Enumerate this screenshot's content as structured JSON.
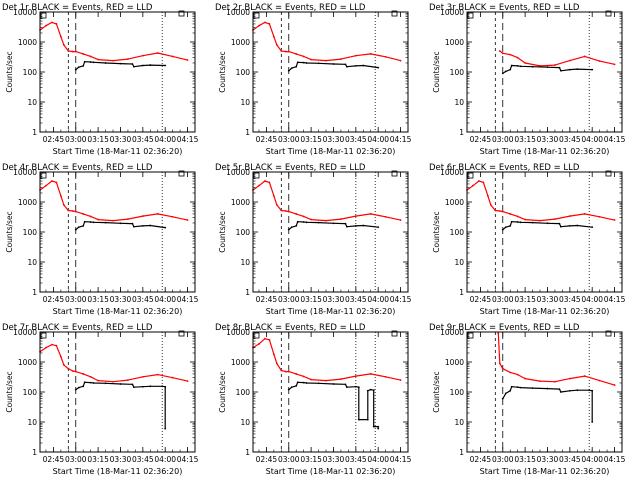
{
  "chart_data": [
    {
      "type": "line",
      "title": "Det 1r BLACK = Events, RED = LLD",
      "x_label": "Start Time (18-Mar-11 02:36:20)",
      "y_label": "Counts/sec",
      "x_ticks": [
        "02:45",
        "03:00",
        "03:15",
        "03:30",
        "03:45",
        "04:00",
        "04:15"
      ],
      "y_ticks": [
        "1",
        "10",
        "100",
        "1000",
        "10000"
      ],
      "y_scale": "log",
      "ylim": [
        1,
        10000
      ],
      "series": [
        {
          "color": "#ff0000",
          "x": [
            "02:36",
            "02:40",
            "02:44",
            "02:47",
            "02:50",
            "02:52",
            "02:55",
            "02:58",
            "03:00",
            "03:05",
            "03:10",
            "03:15",
            "03:25",
            "03:35",
            "03:45",
            "03:55",
            "04:05",
            "04:15"
          ],
          "y": [
            2500,
            3500,
            4500,
            4000,
            1500,
            800,
            500,
            480,
            480,
            400,
            330,
            260,
            240,
            270,
            350,
            430,
            330,
            250
          ]
        },
        {
          "color": "#000000",
          "x": [
            "03:00",
            "03:02",
            "03:05",
            "03:06",
            "03:10",
            "03:12",
            "03:20",
            "03:30",
            "03:38",
            "03:39",
            "03:45",
            "03:50",
            "04:00"
          ],
          "y": [
            120,
            145,
            160,
            220,
            215,
            210,
            200,
            190,
            185,
            150,
            165,
            170,
            165
          ]
        }
      ]
    },
    {
      "type": "line",
      "title": "Det 2r BLACK = Events, RED = LLD",
      "x_label": "Start Time (18-Mar-11 02:36:20)",
      "y_label": "Counts/sec",
      "x_ticks": [
        "02:45",
        "03:00",
        "03:15",
        "03:30",
        "03:45",
        "04:00",
        "04:15"
      ],
      "y_ticks": [
        "1",
        "10",
        "100",
        "1000",
        "10000"
      ],
      "y_scale": "log",
      "ylim": [
        1,
        10000
      ],
      "series": [
        {
          "color": "#ff0000",
          "x": [
            "02:36",
            "02:40",
            "02:44",
            "02:47",
            "02:50",
            "02:52",
            "02:55",
            "02:58",
            "03:00",
            "03:05",
            "03:10",
            "03:15",
            "03:25",
            "03:35",
            "03:45",
            "03:55",
            "04:05",
            "04:15"
          ],
          "y": [
            2500,
            3500,
            4500,
            4000,
            1500,
            800,
            500,
            480,
            480,
            400,
            330,
            260,
            240,
            270,
            350,
            400,
            320,
            240
          ]
        },
        {
          "color": "#000000",
          "x": [
            "03:00",
            "03:02",
            "03:05",
            "03:06",
            "03:10",
            "03:12",
            "03:20",
            "03:30",
            "03:38",
            "03:39",
            "03:45",
            "03:50",
            "04:00"
          ],
          "y": [
            110,
            135,
            150,
            210,
            205,
            200,
            195,
            185,
            180,
            150,
            160,
            165,
            140
          ]
        }
      ]
    },
    {
      "type": "line",
      "title": "Det 3r BLACK = Events, RED = LLD",
      "x_label": "Start Time (18-Mar-11 02:36:20)",
      "y_label": "Counts/sec",
      "x_ticks": [
        "02:45",
        "03:00",
        "03:15",
        "03:30",
        "03:45",
        "04:00",
        "04:15"
      ],
      "y_ticks": [
        "1",
        "10",
        "100",
        "1000",
        "10000"
      ],
      "y_scale": "log",
      "ylim": [
        1,
        10000
      ],
      "series": [
        {
          "color": "#ff0000",
          "x": [
            "02:58",
            "03:00",
            "03:05",
            "03:10",
            "03:15",
            "03:25",
            "03:35",
            "03:45",
            "03:55",
            "04:05",
            "04:15"
          ],
          "y": [
            500,
            420,
            380,
            300,
            200,
            160,
            170,
            240,
            330,
            230,
            180
          ]
        },
        {
          "color": "#000000",
          "x": [
            "03:00",
            "03:02",
            "03:05",
            "03:06",
            "03:10",
            "03:12",
            "03:20",
            "03:30",
            "03:38",
            "03:39",
            "03:45",
            "03:50",
            "04:00"
          ],
          "y": [
            90,
            105,
            120,
            165,
            160,
            155,
            150,
            145,
            140,
            110,
            120,
            125,
            120
          ]
        }
      ]
    },
    {
      "type": "line",
      "title": "Det 4r BLACK = Events, RED = LLD",
      "x_label": "Start Time (18-Mar-11 02:36:20)",
      "y_label": "Counts/sec",
      "x_ticks": [
        "02:45",
        "03:00",
        "03:15",
        "03:30",
        "03:45",
        "04:00",
        "04:15"
      ],
      "y_ticks": [
        "1",
        "10",
        "100",
        "1000",
        "10000"
      ],
      "y_scale": "log",
      "ylim": [
        1,
        10000
      ],
      "series": [
        {
          "color": "#ff0000",
          "x": [
            "02:36",
            "02:40",
            "02:44",
            "02:47",
            "02:50",
            "02:52",
            "02:55",
            "02:58",
            "03:00",
            "03:05",
            "03:10",
            "03:15",
            "03:25",
            "03:35",
            "03:45",
            "03:55",
            "04:05",
            "04:15"
          ],
          "y": [
            2500,
            3500,
            5000,
            4500,
            1600,
            800,
            520,
            500,
            480,
            400,
            330,
            260,
            240,
            270,
            340,
            400,
            320,
            250
          ]
        },
        {
          "color": "#000000",
          "x": [
            "03:00",
            "03:02",
            "03:05",
            "03:06",
            "03:10",
            "03:12",
            "03:20",
            "03:30",
            "03:38",
            "03:39",
            "03:45",
            "03:50",
            "04:00"
          ],
          "y": [
            120,
            145,
            160,
            220,
            215,
            210,
            205,
            195,
            190,
            150,
            160,
            165,
            140
          ]
        }
      ]
    },
    {
      "type": "line",
      "title": "Det 5r BLACK = Events, RED = LLD",
      "x_label": "Start Time (18-Mar-11 02:36:20)",
      "y_label": "Counts/sec",
      "x_ticks": [
        "02:45",
        "03:00",
        "03:15",
        "03:30",
        "03:45",
        "04:00",
        "04:15"
      ],
      "y_ticks": [
        "1",
        "10",
        "100",
        "1000",
        "10000"
      ],
      "y_scale": "log",
      "ylim": [
        1,
        10000
      ],
      "series": [
        {
          "color": "#ff0000",
          "x": [
            "02:36",
            "02:40",
            "02:44",
            "02:47",
            "02:50",
            "02:52",
            "02:55",
            "02:58",
            "03:00",
            "03:05",
            "03:10",
            "03:15",
            "03:25",
            "03:35",
            "03:45",
            "03:55",
            "04:05",
            "04:15"
          ],
          "y": [
            2500,
            3500,
            5000,
            4500,
            1600,
            800,
            520,
            500,
            480,
            400,
            330,
            260,
            240,
            270,
            340,
            400,
            320,
            250
          ]
        },
        {
          "color": "#000000",
          "x": [
            "03:00",
            "03:02",
            "03:05",
            "03:06",
            "03:10",
            "03:12",
            "03:20",
            "03:30",
            "03:38",
            "03:39",
            "03:45",
            "03:50",
            "04:00"
          ],
          "y": [
            120,
            145,
            160,
            220,
            215,
            210,
            205,
            195,
            190,
            150,
            160,
            165,
            145
          ]
        }
      ]
    },
    {
      "type": "line",
      "title": "Det 6r BLACK = Events, RED = LLD",
      "x_label": "Start Time (18-Mar-11 02:36:20)",
      "y_label": "Counts/sec",
      "x_ticks": [
        "02:45",
        "03:00",
        "03:15",
        "03:30",
        "03:45",
        "04:00",
        "04:15"
      ],
      "y_ticks": [
        "1",
        "10",
        "100",
        "1000",
        "10000"
      ],
      "y_scale": "log",
      "ylim": [
        1,
        10000
      ],
      "series": [
        {
          "color": "#ff0000",
          "x": [
            "02:36",
            "02:40",
            "02:44",
            "02:47",
            "02:50",
            "02:52",
            "02:55",
            "02:58",
            "03:00",
            "03:05",
            "03:10",
            "03:15",
            "03:25",
            "03:35",
            "03:45",
            "03:55",
            "04:05",
            "04:15"
          ],
          "y": [
            2500,
            3500,
            5000,
            4500,
            1600,
            800,
            520,
            500,
            480,
            400,
            330,
            260,
            240,
            270,
            340,
            400,
            320,
            250
          ]
        },
        {
          "color": "#000000",
          "x": [
            "03:00",
            "03:02",
            "03:05",
            "03:06",
            "03:10",
            "03:12",
            "03:20",
            "03:30",
            "03:38",
            "03:39",
            "03:45",
            "03:50",
            "04:00"
          ],
          "y": [
            120,
            145,
            160,
            220,
            215,
            210,
            205,
            195,
            190,
            150,
            160,
            165,
            145
          ]
        }
      ]
    },
    {
      "type": "line",
      "title": "Det 7r BLACK = Events, RED = LLD",
      "x_label": "Start Time (18-Mar-11 02:36:20)",
      "y_label": "Counts/sec",
      "x_ticks": [
        "02:45",
        "03:00",
        "03:15",
        "03:30",
        "03:45",
        "04:00",
        "04:15"
      ],
      "y_ticks": [
        "1",
        "10",
        "100",
        "1000",
        "10000"
      ],
      "y_scale": "log",
      "ylim": [
        1,
        10000
      ],
      "series": [
        {
          "color": "#ff0000",
          "x": [
            "02:36",
            "02:40",
            "02:44",
            "02:47",
            "02:50",
            "02:52",
            "02:55",
            "02:58",
            "03:00",
            "03:05",
            "03:10",
            "03:15",
            "03:25",
            "03:35",
            "03:45",
            "03:55",
            "04:05",
            "04:15"
          ],
          "y": [
            2200,
            3000,
            3800,
            3500,
            1500,
            800,
            600,
            500,
            480,
            400,
            320,
            240,
            220,
            250,
            320,
            380,
            300,
            230
          ]
        },
        {
          "color": "#000000",
          "x": [
            "03:00",
            "03:02",
            "03:05",
            "03:06",
            "03:10",
            "03:12",
            "03:20",
            "03:30",
            "03:38",
            "03:39",
            "03:45",
            "03:50",
            "03:58",
            "04:00",
            "04:00"
          ],
          "y": [
            120,
            140,
            155,
            210,
            205,
            200,
            195,
            185,
            180,
            145,
            150,
            155,
            155,
            150,
            6
          ]
        }
      ]
    },
    {
      "type": "line",
      "title": "Det 8r BLACK = Events, RED = LLD",
      "x_label": "Start Time (18-Mar-11 02:36:20)",
      "y_label": "Counts/sec",
      "x_ticks": [
        "02:45",
        "03:00",
        "03:15",
        "03:30",
        "03:45",
        "04:00",
        "04:15"
      ],
      "y_ticks": [
        "1",
        "10",
        "100",
        "1000",
        "10000"
      ],
      "y_scale": "log",
      "ylim": [
        1,
        10000
      ],
      "series": [
        {
          "color": "#ff0000",
          "x": [
            "02:36",
            "02:40",
            "02:44",
            "02:47",
            "02:50",
            "02:52",
            "02:55",
            "02:58",
            "03:00",
            "03:05",
            "03:10",
            "03:15",
            "03:25",
            "03:35",
            "03:45",
            "03:55",
            "04:05",
            "04:15"
          ],
          "y": [
            3000,
            4000,
            6000,
            5500,
            1800,
            900,
            520,
            480,
            480,
            400,
            330,
            260,
            240,
            270,
            340,
            400,
            320,
            250
          ]
        },
        {
          "color": "#000000",
          "x": [
            "03:00",
            "03:02",
            "03:05",
            "03:06",
            "03:10",
            "03:12",
            "03:20",
            "03:30",
            "03:38",
            "03:39",
            "03:45",
            "03:47",
            "03:47",
            "03:53",
            "03:53",
            "03:55",
            "03:57",
            "03:57",
            "04:00",
            "04:00"
          ],
          "y": [
            120,
            145,
            160,
            210,
            205,
            200,
            195,
            185,
            180,
            145,
            150,
            145,
            12,
            12,
            110,
            120,
            115,
            7,
            7,
            6
          ]
        }
      ]
    },
    {
      "type": "line",
      "title": "Det 9r BLACK = Events, RED = LLD",
      "x_label": "Start Time (18-Mar-11 02:36:20)",
      "y_label": "Counts/sec",
      "x_ticks": [
        "02:45",
        "03:00",
        "03:15",
        "03:30",
        "03:45",
        "04:00",
        "04:15"
      ],
      "y_ticks": [
        "1",
        "10",
        "100",
        "1000",
        "10000"
      ],
      "y_scale": "log",
      "ylim": [
        1,
        10000
      ],
      "series": [
        {
          "color": "#ff0000",
          "x": [
            "02:57",
            "02:58",
            "03:00",
            "03:05",
            "03:10",
            "03:15",
            "03:25",
            "03:35",
            "03:45",
            "03:55",
            "04:05",
            "04:15"
          ],
          "y": [
            9000,
            900,
            600,
            450,
            380,
            280,
            230,
            220,
            280,
            340,
            240,
            170
          ]
        },
        {
          "color": "#000000",
          "x": [
            "03:00",
            "03:02",
            "03:05",
            "03:06",
            "03:10",
            "03:12",
            "03:20",
            "03:30",
            "03:38",
            "03:39",
            "03:45",
            "03:50",
            "03:58",
            "04:00",
            "04:00"
          ],
          "y": [
            60,
            90,
            110,
            150,
            145,
            140,
            135,
            130,
            125,
            100,
            110,
            115,
            115,
            110,
            10
          ]
        }
      ]
    }
  ]
}
